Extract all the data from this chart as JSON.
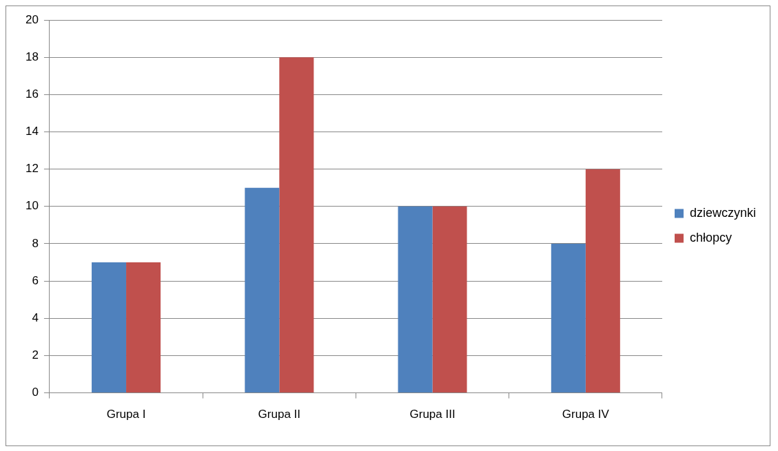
{
  "chart_data": {
    "type": "bar",
    "categories": [
      "Grupa I",
      "Grupa II",
      "Grupa III",
      "Grupa IV"
    ],
    "series": [
      {
        "name": "dziewczynki",
        "color": "#4f81bd",
        "values": [
          7,
          11,
          10,
          8
        ]
      },
      {
        "name": "chłopcy",
        "color": "#c0504d",
        "values": [
          7,
          18,
          10,
          12
        ]
      }
    ],
    "ylim": [
      0,
      20
    ],
    "yticks": [
      0,
      2,
      4,
      6,
      8,
      10,
      12,
      14,
      16,
      18,
      20
    ],
    "grid": "y",
    "legend": "right"
  }
}
